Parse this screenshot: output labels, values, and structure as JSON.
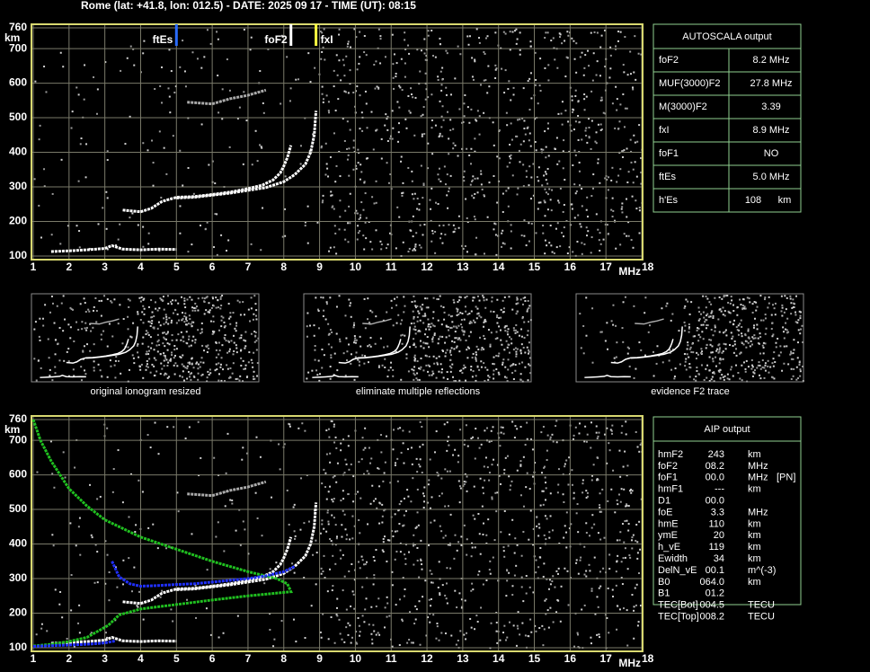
{
  "header": "Rome (lat: +41.8, lon: 012.5) - DATE: 2025 09 17 - TIME (UT): 08:15",
  "chart_data": [
    {
      "type": "ionogram",
      "y_label": "km",
      "x_label": "MHz",
      "xlim": [
        1,
        18
      ],
      "ylim": [
        100,
        760
      ],
      "xticks": [
        1,
        2,
        3,
        4,
        5,
        6,
        7,
        8,
        9,
        10,
        11,
        12,
        13,
        14,
        15,
        16,
        17,
        18
      ],
      "yticks": [
        100,
        200,
        300,
        400,
        500,
        600,
        700,
        760
      ],
      "grid": true,
      "markers": [
        {
          "name": "ftEs",
          "x": 5.0,
          "color": "#2a6cff"
        },
        {
          "name": "foF2",
          "x": 8.2,
          "color": "#ffffff"
        },
        {
          "name": "fxI",
          "x": 8.9,
          "color": "#ffff40"
        }
      ],
      "series": [
        {
          "color": "#ffffff",
          "x": [
            1.5,
            2,
            2.5,
            3,
            3.2,
            3.5,
            4,
            4.5,
            5
          ],
          "values": [
            113,
            115,
            118,
            122,
            130,
            120,
            118,
            120,
            119
          ]
        },
        {
          "color": "#ffffff",
          "x": [
            3.5,
            4,
            4.3,
            4.6,
            5,
            5.5,
            6,
            6.5,
            7,
            7.4,
            7.7,
            7.9,
            8.0,
            8.1,
            8.2
          ],
          "values": [
            233,
            228,
            238,
            258,
            270,
            272,
            278,
            285,
            295,
            305,
            320,
            340,
            360,
            385,
            420
          ]
        },
        {
          "color": "#ffffff",
          "x": [
            5,
            5.5,
            6,
            6.5,
            7,
            7.5,
            8,
            8.3,
            8.6,
            8.75,
            8.85,
            8.9
          ],
          "values": [
            268,
            270,
            276,
            282,
            290,
            298,
            315,
            335,
            365,
            400,
            450,
            520
          ]
        },
        {
          "color": "#aaaaaa",
          "x": [
            5.3,
            6,
            6.5,
            7,
            7.5
          ],
          "values": [
            545,
            540,
            555,
            565,
            580
          ]
        }
      ]
    },
    {
      "type": "ionogram",
      "y_label": "km",
      "x_label": "MHz",
      "xlim": [
        1,
        18
      ],
      "ylim": [
        100,
        760
      ],
      "xticks": [
        1,
        2,
        3,
        4,
        5,
        6,
        7,
        8,
        9,
        10,
        11,
        12,
        13,
        14,
        15,
        16,
        17,
        18
      ],
      "yticks": [
        100,
        200,
        300,
        400,
        500,
        600,
        700,
        760
      ],
      "grid": true,
      "series": [
        {
          "color": "#ffffff",
          "x": [
            1.5,
            2,
            2.5,
            3,
            3.2,
            3.5,
            4,
            4.5,
            5
          ],
          "values": [
            113,
            115,
            118,
            122,
            130,
            120,
            118,
            120,
            119
          ]
        },
        {
          "color": "#ffffff",
          "x": [
            3.5,
            4,
            4.3,
            4.6,
            5,
            5.5,
            6,
            6.5,
            7,
            7.4,
            7.7,
            7.9,
            8.0,
            8.1,
            8.2
          ],
          "values": [
            233,
            228,
            238,
            258,
            270,
            272,
            278,
            285,
            295,
            305,
            320,
            340,
            360,
            385,
            420
          ]
        },
        {
          "color": "#ffffff",
          "x": [
            5,
            5.5,
            6,
            6.5,
            7,
            7.5,
            8,
            8.3,
            8.6,
            8.75,
            8.85,
            8.9
          ],
          "values": [
            268,
            270,
            276,
            282,
            290,
            298,
            315,
            335,
            365,
            400,
            450,
            520
          ]
        },
        {
          "color": "#aaaaaa",
          "x": [
            5.3,
            6,
            6.5,
            7,
            7.5
          ],
          "values": [
            545,
            540,
            555,
            565,
            580
          ]
        },
        {
          "color": "#20c020",
          "x": [
            1,
            1.2,
            1.5,
            2,
            2.5,
            3,
            4,
            5,
            6,
            7,
            7.8,
            8.1,
            8.2,
            7.5,
            7,
            6,
            5,
            4,
            3.4,
            3.1,
            2.5,
            2,
            1.5,
            1
          ],
          "values": [
            760,
            700,
            640,
            560,
            510,
            470,
            420,
            385,
            350,
            320,
            300,
            285,
            262,
            255,
            250,
            238,
            225,
            212,
            195,
            165,
            130,
            118,
            110,
            105
          ]
        },
        {
          "color": "#2030ff",
          "x": [
            3.2,
            3.4,
            3.7,
            4,
            4.5,
            5,
            5.5,
            6,
            6.5,
            7,
            7.5,
            8,
            8.3
          ],
          "values": [
            350,
            305,
            285,
            278,
            280,
            283,
            285,
            290,
            295,
            300,
            308,
            320,
            335
          ]
        },
        {
          "color": "#2030ff",
          "x": [
            1,
            1.5,
            2,
            2.5,
            3,
            3.3
          ],
          "values": [
            104,
            106,
            108,
            110,
            114,
            120
          ]
        }
      ]
    }
  ],
  "autoscala": {
    "title": "AUTOSCALA output",
    "rows": [
      {
        "label": "foF2",
        "value": "8.2 MHz",
        "color": "#ffffff"
      },
      {
        "label": "MUF(3000)F2",
        "value": "27.8 MHz",
        "color": "#ffffff"
      },
      {
        "label": "M(3000)F2",
        "value": "3.39",
        "color": "#ffffff"
      },
      {
        "label": "fxI",
        "value": "8.9 MHz",
        "color": "#e8e840"
      },
      {
        "label": "foF1",
        "value": "NO",
        "color": "#ff2020"
      },
      {
        "label": "ftEs",
        "value": "5.0 MHz",
        "color": "#2a7cff"
      },
      {
        "label": "h'Es",
        "value": "108",
        "unit": "km",
        "color": "#ffffff"
      }
    ]
  },
  "thumbnails": [
    "original ionogram resized",
    "eliminate multiple reflections",
    "evidence F2 trace"
  ],
  "aip": {
    "title": "AIP output",
    "rows": [
      [
        "hmF2",
        "243",
        "km"
      ],
      [
        "foF2",
        "08.2",
        "MHz"
      ],
      [
        "foF1",
        "00.0",
        "MHz",
        "[PN]"
      ],
      [
        "hmF1",
        "---",
        "km"
      ],
      [
        "D1",
        "00.0"
      ],
      [
        "foE",
        "3.3",
        "MHz"
      ],
      [
        "hmE",
        "110",
        "km"
      ],
      [
        "ymE",
        "20",
        "km"
      ],
      [
        "h_vE",
        "119",
        "km"
      ],
      [
        "Ewidth",
        "34",
        "km"
      ],
      [
        "DelN_vE",
        "00.1",
        "m^(-3)"
      ],
      [
        "B0",
        "064.0",
        "km"
      ],
      [
        "B1",
        "01.2"
      ],
      [
        "TEC[Bot]",
        "004.5",
        "TECU"
      ],
      [
        "TEC[Top]",
        "008.2",
        "TECU"
      ]
    ]
  }
}
